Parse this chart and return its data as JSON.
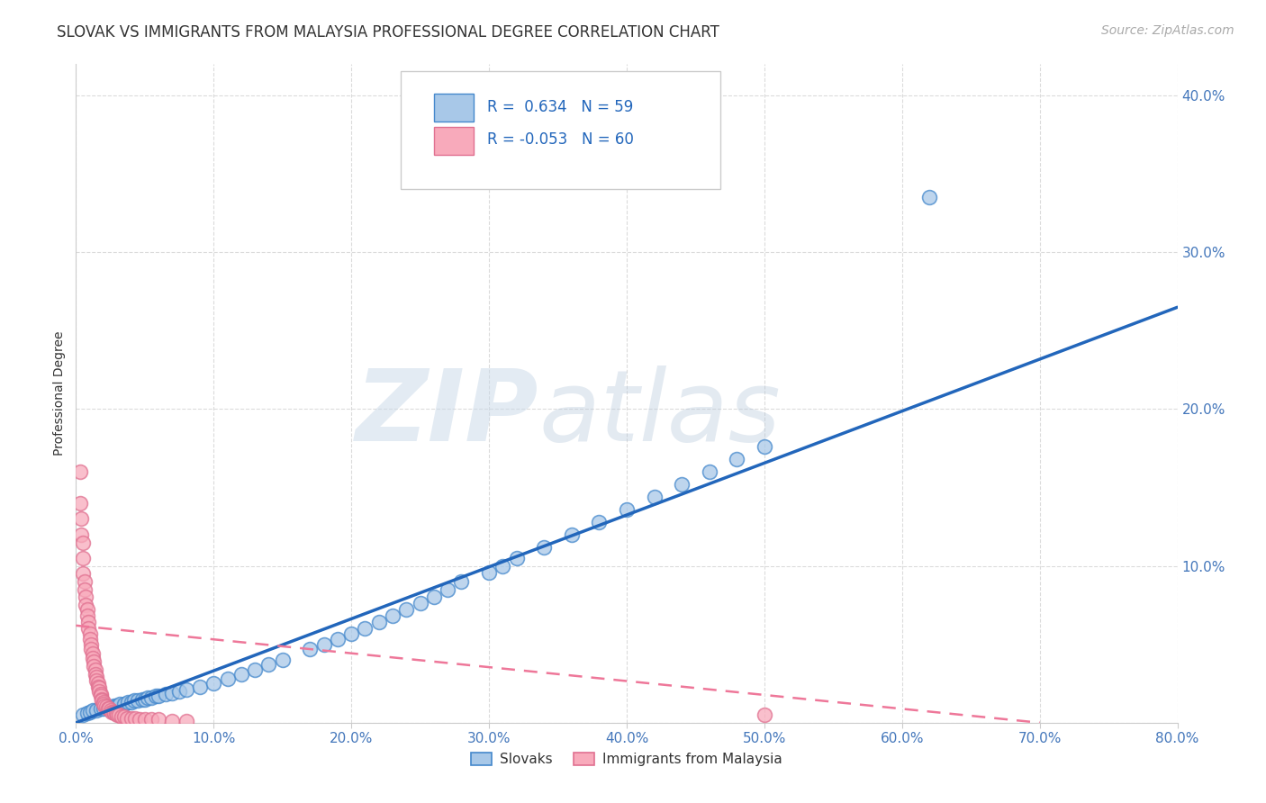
{
  "title": "SLOVAK VS IMMIGRANTS FROM MALAYSIA PROFESSIONAL DEGREE CORRELATION CHART",
  "source": "Source: ZipAtlas.com",
  "ylabel": "Professional Degree",
  "x_min": 0.0,
  "x_max": 0.8,
  "y_min": 0.0,
  "y_max": 0.42,
  "x_ticks": [
    0.0,
    0.1,
    0.2,
    0.3,
    0.4,
    0.5,
    0.6,
    0.7,
    0.8
  ],
  "x_tick_labels": [
    "0.0%",
    "",
    "",
    "",
    "",
    "",
    "",
    "",
    "80.0%"
  ],
  "y_ticks": [
    0.0,
    0.1,
    0.2,
    0.3,
    0.4
  ],
  "y_tick_labels_right": [
    "",
    "10.0%",
    "20.0%",
    "30.0%",
    "40.0%"
  ],
  "blue_R": 0.634,
  "blue_N": 59,
  "pink_R": -0.053,
  "pink_N": 60,
  "blue_scatter_color": "#A8C8E8",
  "blue_edge_color": "#4488CC",
  "pink_scatter_color": "#F8AABB",
  "pink_edge_color": "#E07090",
  "blue_line_color": "#2266BB",
  "pink_line_color": "#EE7799",
  "legend_label_blue": "Slovaks",
  "legend_label_pink": "Immigrants from Malaysia",
  "blue_line_x0": 0.0,
  "blue_line_y0": 0.0,
  "blue_line_x1": 0.8,
  "blue_line_y1": 0.265,
  "pink_line_x0": 0.0,
  "pink_line_y0": 0.062,
  "pink_line_x1": 0.7,
  "pink_line_y1": 0.0,
  "title_fontsize": 12,
  "tick_fontsize": 11,
  "source_fontsize": 10,
  "background_color": "#FFFFFF",
  "grid_color": "#CCCCCC",
  "blue_x": [
    0.005,
    0.008,
    0.01,
    0.012,
    0.015,
    0.018,
    0.02,
    0.022,
    0.025,
    0.028,
    0.03,
    0.032,
    0.035,
    0.038,
    0.04,
    0.042,
    0.045,
    0.048,
    0.05,
    0.052,
    0.055,
    0.058,
    0.06,
    0.065,
    0.07,
    0.075,
    0.08,
    0.09,
    0.1,
    0.11,
    0.12,
    0.13,
    0.14,
    0.15,
    0.17,
    0.18,
    0.19,
    0.2,
    0.21,
    0.22,
    0.23,
    0.24,
    0.25,
    0.26,
    0.27,
    0.28,
    0.3,
    0.31,
    0.32,
    0.34,
    0.36,
    0.38,
    0.4,
    0.42,
    0.44,
    0.46,
    0.48,
    0.5,
    0.62
  ],
  "blue_y": [
    0.005,
    0.006,
    0.007,
    0.008,
    0.008,
    0.009,
    0.009,
    0.01,
    0.01,
    0.011,
    0.011,
    0.012,
    0.012,
    0.013,
    0.013,
    0.014,
    0.014,
    0.015,
    0.015,
    0.016,
    0.016,
    0.017,
    0.017,
    0.018,
    0.019,
    0.02,
    0.021,
    0.023,
    0.025,
    0.028,
    0.031,
    0.034,
    0.037,
    0.04,
    0.047,
    0.05,
    0.053,
    0.057,
    0.06,
    0.064,
    0.068,
    0.072,
    0.076,
    0.08,
    0.085,
    0.09,
    0.096,
    0.1,
    0.105,
    0.112,
    0.12,
    0.128,
    0.136,
    0.144,
    0.152,
    0.16,
    0.168,
    0.176,
    0.335
  ],
  "pink_x": [
    0.003,
    0.003,
    0.004,
    0.004,
    0.005,
    0.005,
    0.005,
    0.006,
    0.006,
    0.007,
    0.007,
    0.008,
    0.008,
    0.009,
    0.009,
    0.01,
    0.01,
    0.011,
    0.011,
    0.012,
    0.012,
    0.013,
    0.013,
    0.014,
    0.014,
    0.015,
    0.015,
    0.016,
    0.016,
    0.017,
    0.017,
    0.018,
    0.018,
    0.019,
    0.019,
    0.02,
    0.02,
    0.021,
    0.022,
    0.023,
    0.024,
    0.025,
    0.026,
    0.027,
    0.028,
    0.029,
    0.03,
    0.031,
    0.033,
    0.035,
    0.037,
    0.04,
    0.043,
    0.046,
    0.05,
    0.055,
    0.06,
    0.07,
    0.08,
    0.5
  ],
  "pink_y": [
    0.16,
    0.14,
    0.13,
    0.12,
    0.115,
    0.105,
    0.095,
    0.09,
    0.085,
    0.08,
    0.075,
    0.072,
    0.068,
    0.064,
    0.06,
    0.057,
    0.053,
    0.05,
    0.047,
    0.044,
    0.041,
    0.039,
    0.036,
    0.034,
    0.031,
    0.029,
    0.027,
    0.025,
    0.023,
    0.022,
    0.02,
    0.018,
    0.017,
    0.015,
    0.014,
    0.013,
    0.012,
    0.011,
    0.01,
    0.009,
    0.009,
    0.008,
    0.007,
    0.007,
    0.006,
    0.006,
    0.005,
    0.005,
    0.004,
    0.004,
    0.003,
    0.003,
    0.003,
    0.002,
    0.002,
    0.002,
    0.002,
    0.001,
    0.001,
    0.005
  ]
}
